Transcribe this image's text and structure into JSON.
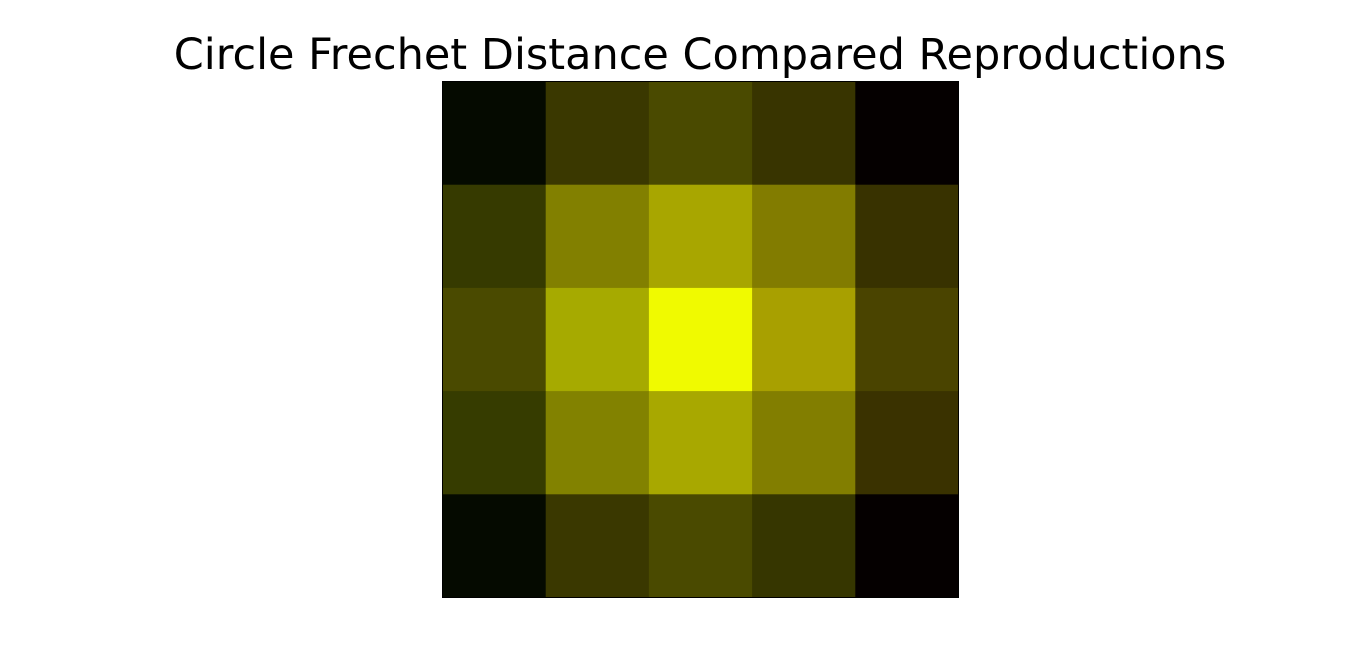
{
  "chart_data": {
    "type": "heatmap",
    "title": "Circle Frechet Distance Compared Reproductions",
    "xlabel": "",
    "ylabel": "",
    "rows": 5,
    "cols": 5,
    "axes_visible": false,
    "cells": [
      [
        "#050a00",
        "#3a3800",
        "#4a4a00",
        "#383400",
        "#050000"
      ],
      [
        "#363a00",
        "#828000",
        "#a8a600",
        "#827c00",
        "#383200"
      ],
      [
        "#4a4a00",
        "#a6aa00",
        "#f0fa00",
        "#a8a000",
        "#4a4400"
      ],
      [
        "#363c00",
        "#828200",
        "#a8a800",
        "#827e00",
        "#3a3200"
      ],
      [
        "#050a00",
        "#3a3800",
        "#4a4a00",
        "#363600",
        "#050000"
      ]
    ]
  }
}
